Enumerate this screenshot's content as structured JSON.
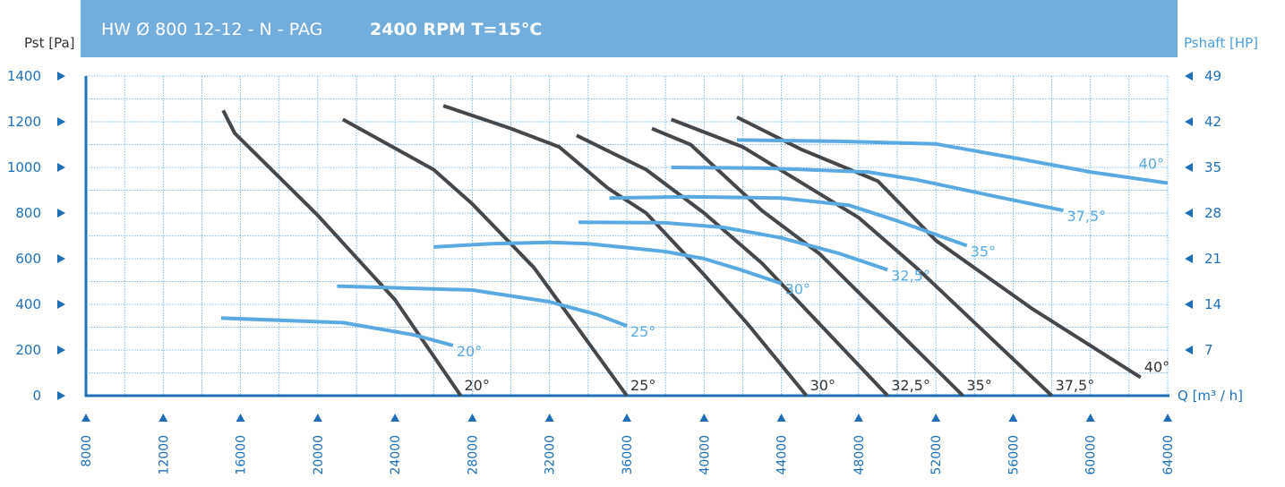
{
  "header": {
    "model": "HW Ø 800 12-12 - N - PAG",
    "speed": "2400 RPM T=15°C"
  },
  "colors": {
    "header_bg": "#72aedd",
    "grid": "#5aa9e0",
    "axis": "#1f6fb6",
    "pressure_curve": "#46474a",
    "power_curve": "#5aa9e0"
  },
  "chart_data": {
    "type": "line",
    "x_axis": {
      "label": "Q [m³ / h]",
      "range": [
        8000,
        64000
      ],
      "ticks": [
        8000,
        12000,
        16000,
        20000,
        24000,
        28000,
        32000,
        36000,
        40000,
        44000,
        48000,
        52000,
        56000,
        60000,
        64000
      ]
    },
    "y_left": {
      "label": "Pst [Pa]",
      "range": [
        0,
        1400
      ],
      "ticks": [
        0,
        200,
        400,
        600,
        800,
        1000,
        1200,
        1400
      ]
    },
    "y_right": {
      "label": "Pshaft [HP]",
      "range": [
        0,
        49
      ],
      "ticks": [
        7,
        14,
        21,
        28,
        35,
        42,
        49
      ]
    },
    "grid": true,
    "pressure_series": [
      {
        "name": "20°",
        "points": [
          [
            15100,
            1250
          ],
          [
            15700,
            1150
          ],
          [
            20000,
            790
          ],
          [
            24000,
            420
          ],
          [
            27400,
            0
          ]
        ]
      },
      {
        "name": "25°",
        "points": [
          [
            21300,
            1210
          ],
          [
            26000,
            990
          ],
          [
            28000,
            840
          ],
          [
            31200,
            560
          ],
          [
            36000,
            0
          ]
        ]
      },
      {
        "name": "30°",
        "points": [
          [
            26500,
            1270
          ],
          [
            30000,
            1170
          ],
          [
            32500,
            1090
          ],
          [
            35000,
            910
          ],
          [
            37000,
            800
          ],
          [
            40000,
            530
          ],
          [
            42200,
            320
          ],
          [
            45300,
            0
          ]
        ]
      },
      {
        "name": "32,5°",
        "points": [
          [
            33400,
            1140
          ],
          [
            37000,
            990
          ],
          [
            40000,
            800
          ],
          [
            43000,
            580
          ],
          [
            49500,
            0
          ]
        ]
      },
      {
        "name": "35°",
        "points": [
          [
            37300,
            1170
          ],
          [
            39300,
            1100
          ],
          [
            43000,
            810
          ],
          [
            46000,
            620
          ],
          [
            53400,
            0
          ]
        ]
      },
      {
        "name": "37,5°",
        "points": [
          [
            38300,
            1210
          ],
          [
            42000,
            1090
          ],
          [
            48000,
            780
          ],
          [
            51000,
            560
          ],
          [
            58000,
            0
          ]
        ]
      },
      {
        "name": "40°",
        "points": [
          [
            41700,
            1220
          ],
          [
            45000,
            1080
          ],
          [
            49000,
            940
          ],
          [
            52000,
            680
          ],
          [
            57000,
            380
          ],
          [
            62600,
            80
          ]
        ]
      }
    ],
    "power_series": [
      {
        "name": "20°",
        "points": [
          [
            15000,
            11.9
          ],
          [
            21300,
            11.2
          ],
          [
            25000,
            9.3
          ],
          [
            27000,
            7.7
          ]
        ]
      },
      {
        "name": "25°",
        "points": [
          [
            21000,
            16.8
          ],
          [
            28000,
            16.2
          ],
          [
            32000,
            14.4
          ],
          [
            34500,
            12.4
          ],
          [
            36000,
            10.7
          ]
        ]
      },
      {
        "name": "30°",
        "points": [
          [
            26000,
            22.8
          ],
          [
            29000,
            23.3
          ],
          [
            32000,
            23.5
          ],
          [
            34000,
            23.3
          ],
          [
            38000,
            22.1
          ],
          [
            40000,
            21.0
          ],
          [
            42000,
            19.2
          ],
          [
            44000,
            17.2
          ]
        ]
      },
      {
        "name": "32,5°",
        "points": [
          [
            33500,
            26.6
          ],
          [
            38000,
            26.5
          ],
          [
            41000,
            25.8
          ],
          [
            44000,
            24.2
          ],
          [
            47000,
            21.8
          ],
          [
            49500,
            19.3
          ]
        ]
      },
      {
        "name": "35°",
        "points": [
          [
            35100,
            30.3
          ],
          [
            39000,
            30.5
          ],
          [
            44000,
            30.3
          ],
          [
            47500,
            29.2
          ],
          [
            50000,
            26.8
          ],
          [
            53600,
            23.0
          ]
        ]
      },
      {
        "name": "37,5°",
        "points": [
          [
            38300,
            35.0
          ],
          [
            43000,
            34.9
          ],
          [
            48500,
            34.3
          ],
          [
            51000,
            33.1
          ],
          [
            55000,
            30.6
          ],
          [
            58600,
            28.4
          ]
        ]
      },
      {
        "name": "40°",
        "points": [
          [
            41700,
            39.2
          ],
          [
            47000,
            39.0
          ],
          [
            52000,
            38.6
          ],
          [
            56000,
            36.5
          ],
          [
            60000,
            34.3
          ],
          [
            64000,
            32.6
          ]
        ]
      }
    ]
  }
}
